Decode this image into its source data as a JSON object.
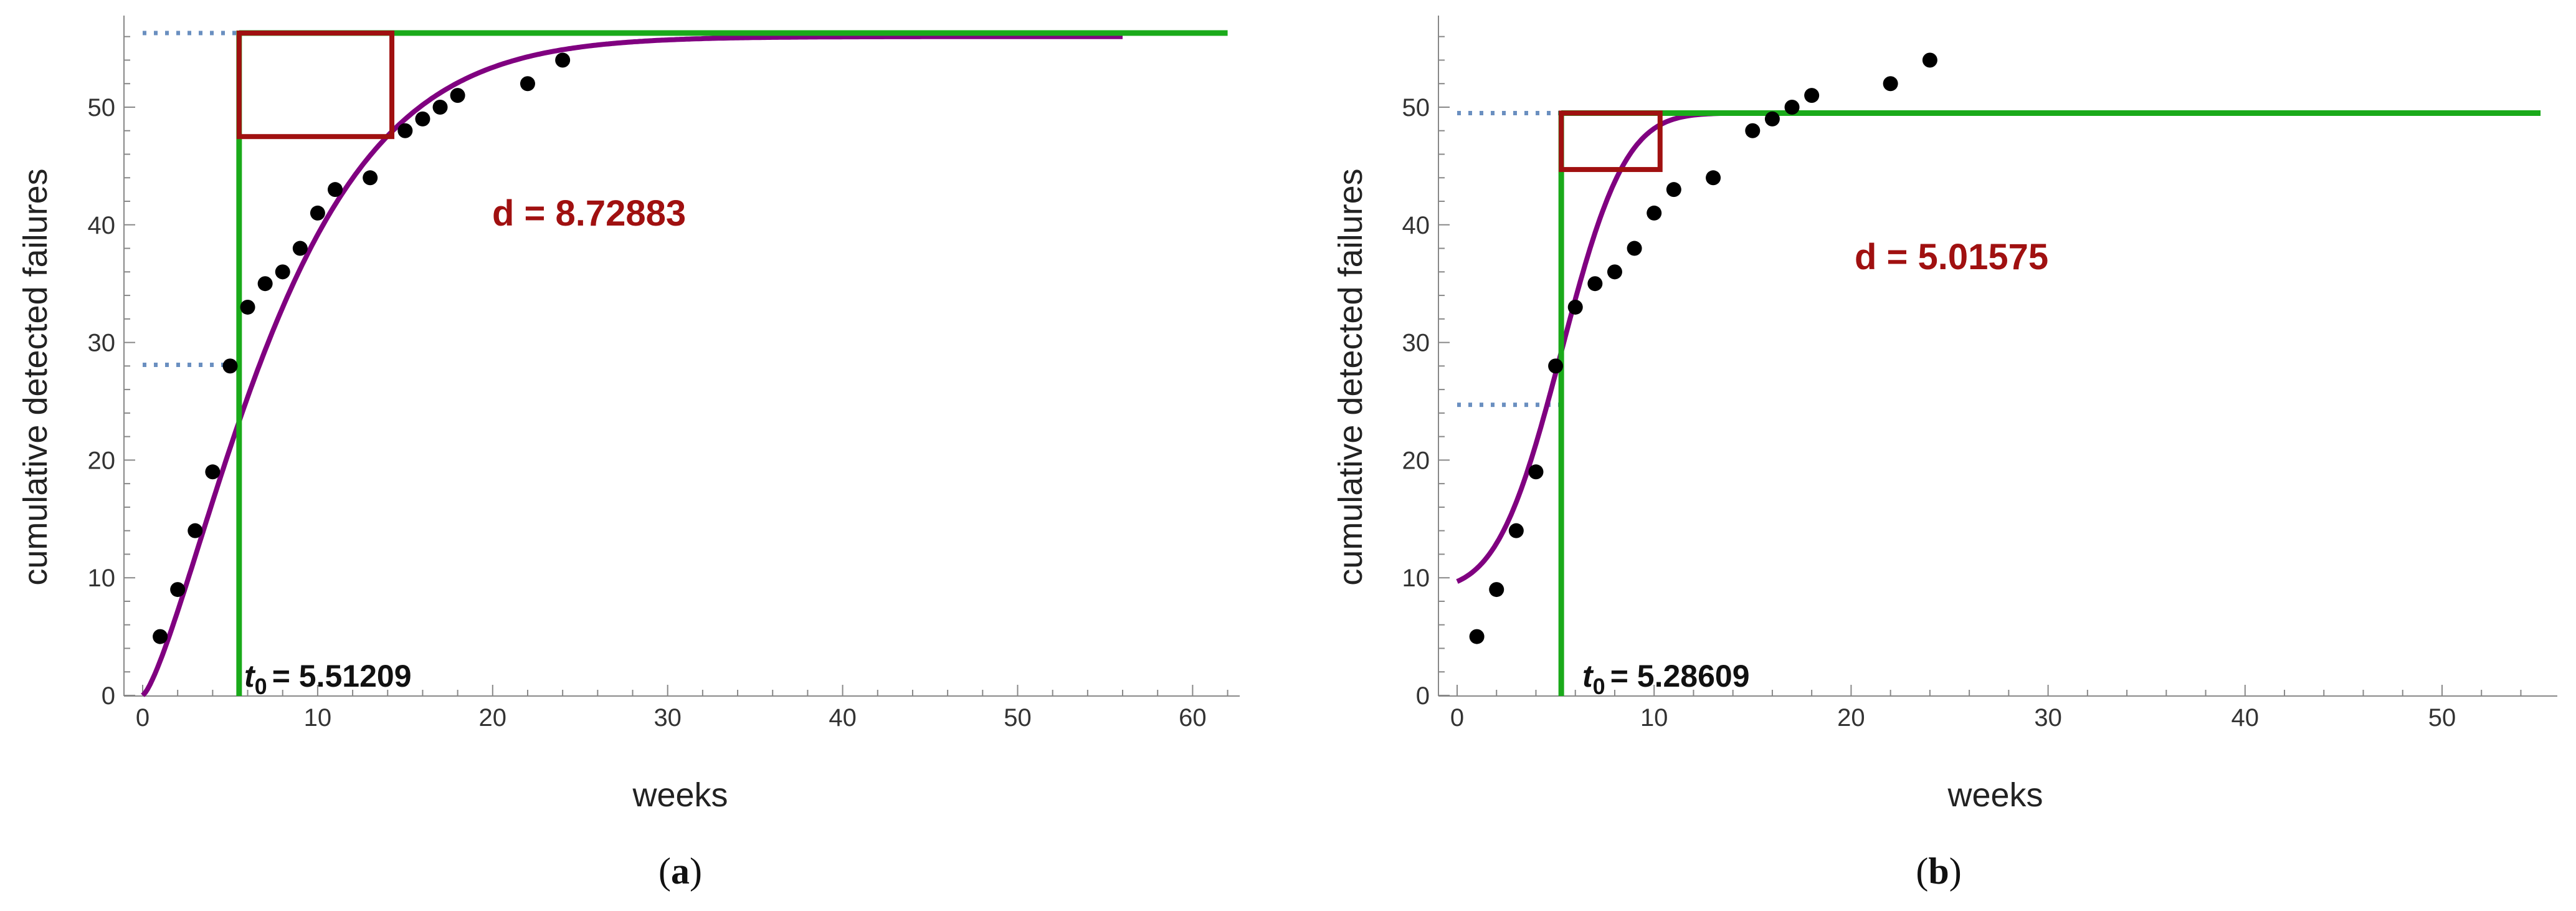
{
  "chart_data": [
    {
      "type": "scatter",
      "panel_label": "a",
      "xlabel": "weeks",
      "ylabel": "cumulative detected failures",
      "xlim": [
        0,
        62
      ],
      "ylim": [
        0,
        57
      ],
      "xticks": [
        0,
        10,
        20,
        30,
        40,
        50,
        60
      ],
      "yticks": [
        0,
        10,
        20,
        30,
        40,
        50
      ],
      "series": [
        {
          "kind": "points",
          "x": [
            1,
            2,
            3,
            4,
            5,
            6,
            7,
            8,
            9,
            10,
            11,
            13,
            15,
            16,
            17,
            18,
            22,
            24
          ],
          "y": [
            5,
            9,
            14,
            19,
            28,
            33,
            35,
            36,
            38,
            41,
            43,
            44,
            48,
            49,
            50,
            51,
            52,
            54
          ],
          "color": "#000000"
        },
        {
          "kind": "fitted-curve",
          "model": "logistic-type",
          "asymptote": 56,
          "inflection_x": 5.51209,
          "inflection_y": 28,
          "x_end": 56,
          "color": "#800080"
        }
      ],
      "annotations": {
        "t0_label": "t",
        "t0_sub": "0",
        "t0_value": "=  5.51209",
        "t0": 5.51209,
        "d_text": "d = 8.72883",
        "d": 8.72883,
        "box_bottom": 47.5,
        "asymptote_line": 56.3,
        "asymptote_line_end": 62,
        "lower_guide": 28.1,
        "green": "#1aaa1a",
        "box_color": "#a01010",
        "guide_color": "#6a8fc0"
      }
    },
    {
      "type": "scatter",
      "panel_label": "b",
      "xlabel": "weeks",
      "ylabel": "cumulative detected failures",
      "xlim": [
        0,
        55
      ],
      "ylim": [
        0,
        57
      ],
      "xticks": [
        0,
        10,
        20,
        30,
        40,
        50
      ],
      "yticks": [
        0,
        10,
        20,
        30,
        40,
        50
      ],
      "series": [
        {
          "kind": "points",
          "x": [
            1,
            2,
            3,
            4,
            5,
            6,
            7,
            8,
            9,
            10,
            11,
            13,
            15,
            16,
            17,
            18,
            22,
            24
          ],
          "y": [
            5,
            9,
            14,
            19,
            28,
            33,
            35,
            36,
            38,
            41,
            43,
            44,
            48,
            49,
            50,
            51,
            52,
            54
          ],
          "color": "#000000"
        },
        {
          "kind": "fitted-curve",
          "model": "gaussian-type",
          "asymptote": 49.5,
          "inflection_x": 5.28609,
          "inflection_y": 24.7,
          "x_end": 50,
          "color": "#800080"
        }
      ],
      "annotations": {
        "t0_label": "t",
        "t0_sub": "0",
        "t0_value": "=  5.28609",
        "t0": 5.28609,
        "d_text": "d = 5.01575",
        "d": 5.01575,
        "box_bottom": 44.7,
        "asymptote_line": 49.5,
        "asymptote_line_end": 55,
        "lower_guide": 24.7,
        "green": "#1aaa1a",
        "box_color": "#a01010",
        "guide_color": "#6a8fc0"
      }
    }
  ]
}
